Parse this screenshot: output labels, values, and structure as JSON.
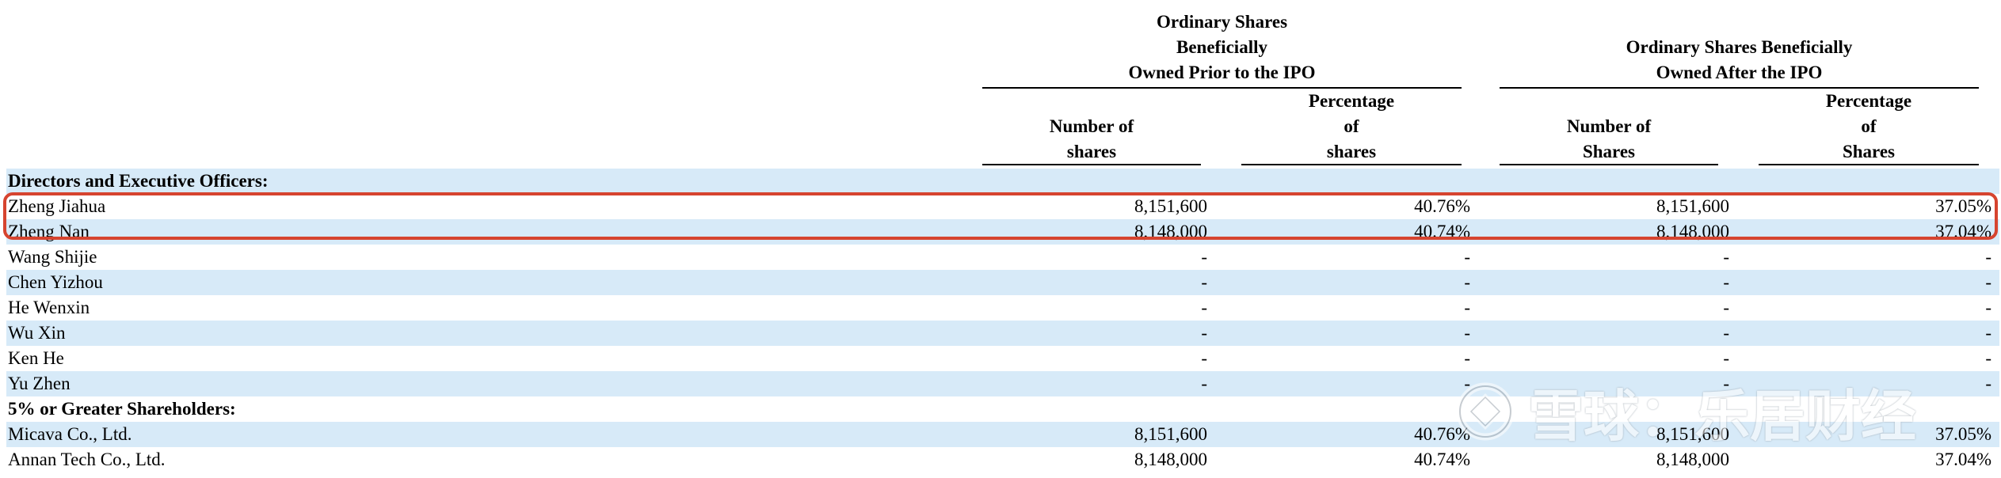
{
  "header": {
    "group_prior": [
      "Ordinary Shares",
      "Beneficially",
      "Owned Prior to the IPO"
    ],
    "group_after": [
      "Ordinary Shares Beneficially",
      "Owned After the IPO"
    ],
    "col_prior_number": [
      "Number of",
      "shares"
    ],
    "col_prior_pct": [
      "Percentage",
      "of",
      "shares"
    ],
    "col_after_number": [
      "Number of",
      "Shares"
    ],
    "col_after_pct": [
      "Percentage",
      "of",
      "Shares"
    ]
  },
  "rows": [
    {
      "type": "section",
      "name": "Directors and Executive Officers:"
    },
    {
      "type": "data",
      "name": "Zheng Jiahua",
      "prior_shares": "8,151,600",
      "prior_pct": "40.76%",
      "after_shares": "8,151,600",
      "after_pct": "37.05%"
    },
    {
      "type": "data",
      "name": "Zheng Nan",
      "prior_shares": "8,148,000",
      "prior_pct": "40.74%",
      "after_shares": "8,148,000",
      "after_pct": "37.04%"
    },
    {
      "type": "data",
      "name": "Wang Shijie",
      "prior_shares": "-",
      "prior_pct": "-",
      "after_shares": "-",
      "after_pct": "-"
    },
    {
      "type": "data",
      "name": "Chen Yizhou",
      "prior_shares": "-",
      "prior_pct": "-",
      "after_shares": "-",
      "after_pct": "-"
    },
    {
      "type": "data",
      "name": "He Wenxin",
      "prior_shares": "-",
      "prior_pct": "-",
      "after_shares": "-",
      "after_pct": "-"
    },
    {
      "type": "data",
      "name": "Wu Xin",
      "prior_shares": "-",
      "prior_pct": "-",
      "after_shares": "-",
      "after_pct": "-"
    },
    {
      "type": "data",
      "name": "Ken He",
      "prior_shares": "-",
      "prior_pct": "-",
      "after_shares": "-",
      "after_pct": "-"
    },
    {
      "type": "data",
      "name": "Yu Zhen",
      "prior_shares": "-",
      "prior_pct": "-",
      "after_shares": "-",
      "after_pct": "-"
    },
    {
      "type": "section",
      "name": "5% or Greater Shareholders:"
    },
    {
      "type": "data",
      "name": "Micava Co., Ltd.",
      "prior_shares": "8,151,600",
      "prior_pct": "40.76%",
      "after_shares": "8,151,600",
      "after_pct": "37.05%"
    },
    {
      "type": "data",
      "name": "Annan Tech Co., Ltd.",
      "prior_shares": "8,148,000",
      "prior_pct": "40.74%",
      "after_shares": "8,148,000",
      "after_pct": "37.04%"
    }
  ],
  "watermark": {
    "text": "雪球：乐居财经"
  },
  "colors": {
    "row_shade": "#d7eaf8",
    "highlight": "#d6442f"
  }
}
